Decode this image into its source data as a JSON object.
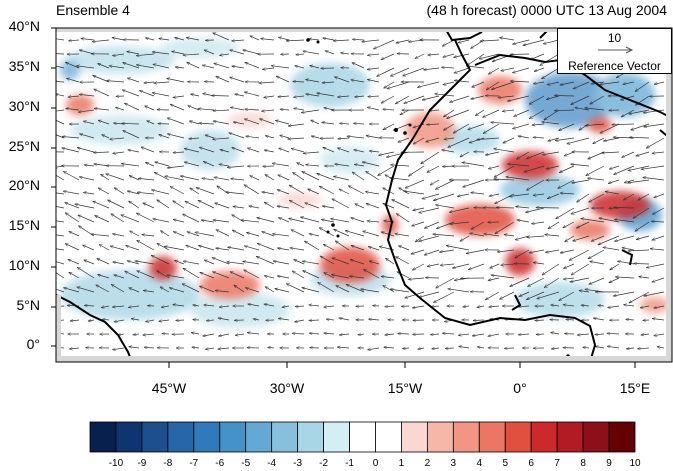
{
  "header": {
    "ensemble_label": "Ensemble 4",
    "forecast_label": "(48 h forecast) 0000 UTC 13 Aug 2004"
  },
  "axes": {
    "lat_labels": [
      "40°N",
      "35°N",
      "30°N",
      "25°N",
      "20°N",
      "15°N",
      "10°N",
      "5°N",
      "0°"
    ],
    "lon_labels": [
      "45°W",
      "30°W",
      "15°W",
      "0°",
      "15°E"
    ]
  },
  "reference_vector": {
    "value": "10",
    "label": "Reference Vector"
  },
  "colorbar": {
    "labels": [
      "-10",
      "-9",
      "-8",
      "-7",
      "-6",
      "-5",
      "-4",
      "-3",
      "-2",
      "-1",
      "0",
      "1",
      "2",
      "3",
      "4",
      "5",
      "6",
      "7",
      "8",
      "9",
      "10"
    ],
    "colors": [
      "#08204e",
      "#0f3470",
      "#1d4f8f",
      "#2666a9",
      "#2f7abc",
      "#4592c9",
      "#63a9d3",
      "#86c0dd",
      "#a9d6e6",
      "#d4eef6",
      "#ffffff",
      "#ffffff",
      "#fbd7d2",
      "#f6b7a8",
      "#f19684",
      "#eb7663",
      "#e1503f",
      "#cc2a2a",
      "#b21a24",
      "#8c0f1a",
      "#650005"
    ]
  },
  "map": {
    "land_color": "#d7d7d7"
  }
}
